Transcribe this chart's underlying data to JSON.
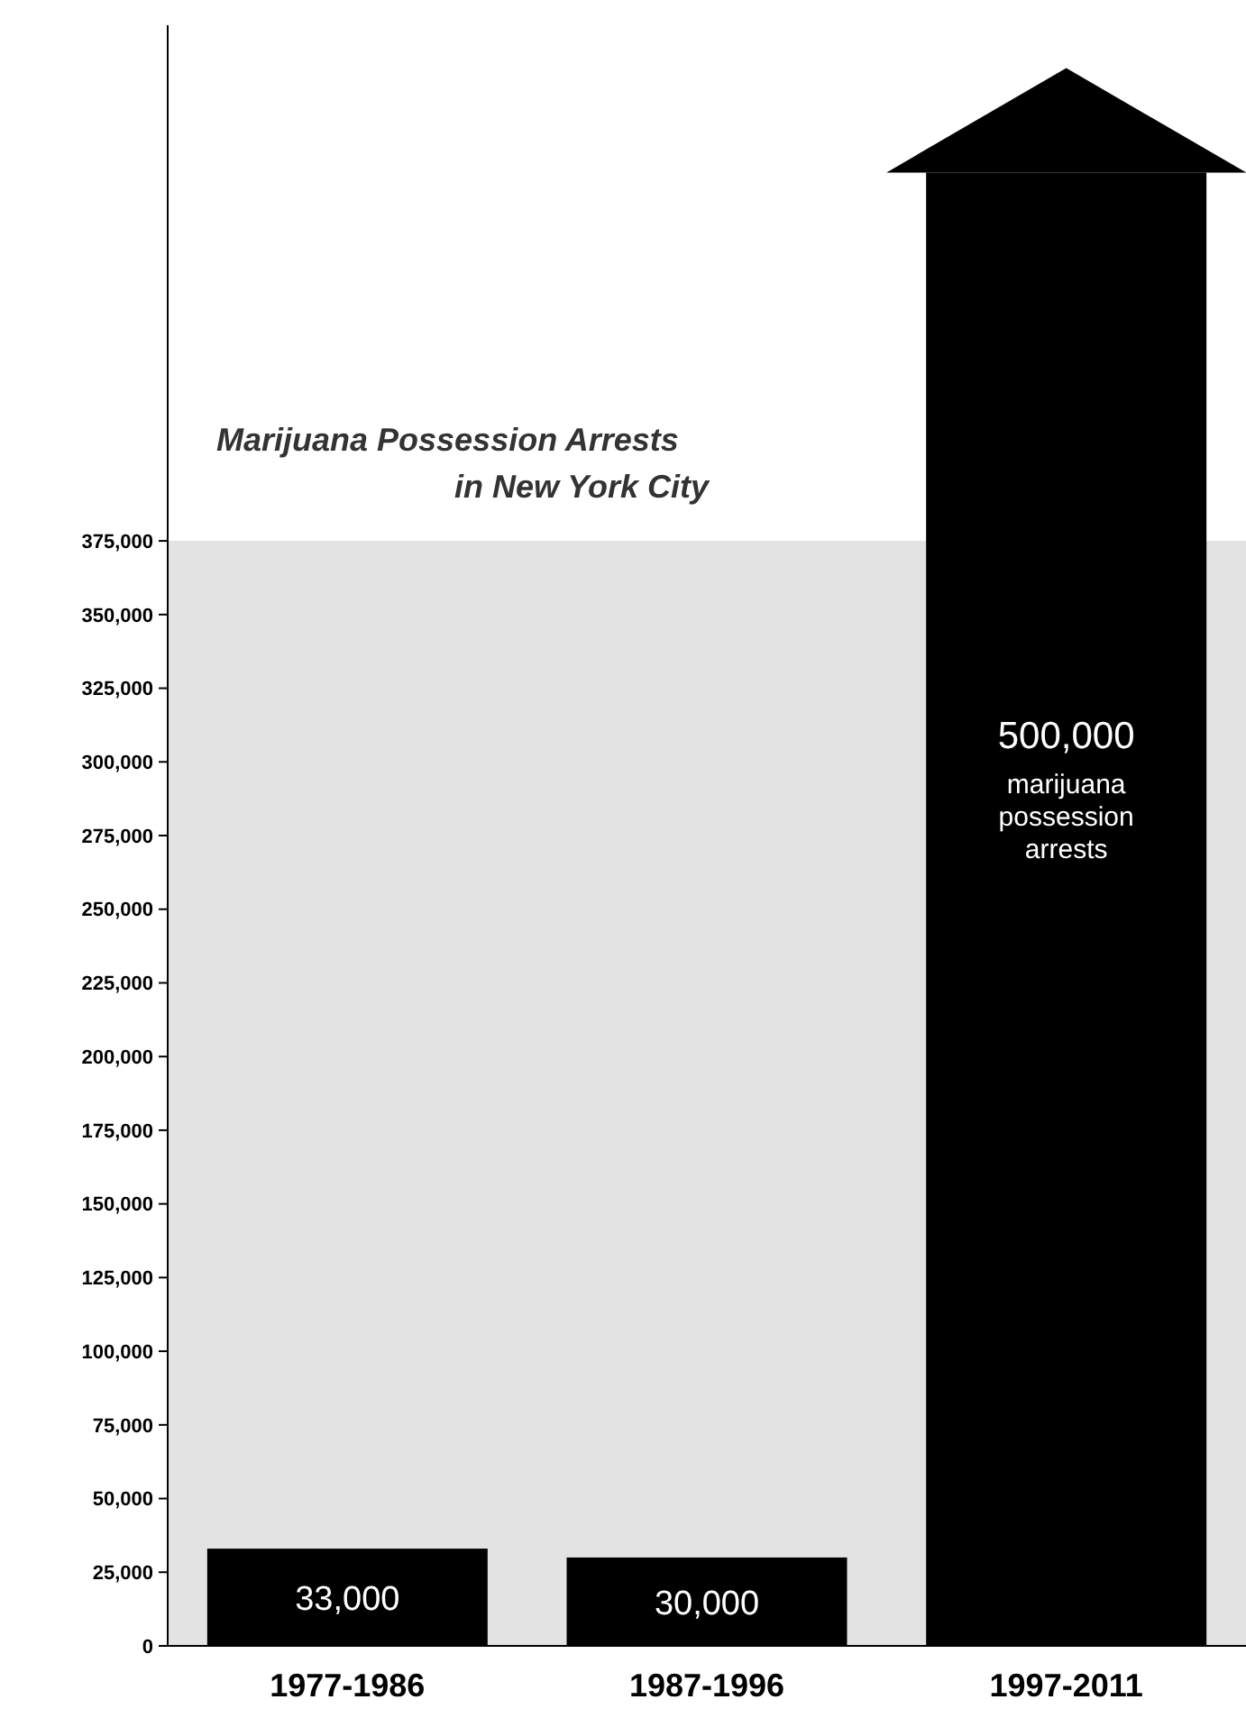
{
  "chart_data": {
    "type": "bar",
    "title": "Marijuana Possession Arrests\nin New York City",
    "categories": [
      "1977-1986",
      "1987-1996",
      "1997-2011"
    ],
    "values": [
      33000,
      30000,
      500000
    ],
    "color": "#000000",
    "value_labels": [
      "33,000",
      "30,000",
      "500,000"
    ],
    "annotations": [
      "marijuana\npossession\narrests"
    ],
    "ylim": [
      0,
      550000
    ],
    "yticks": [
      0,
      {
        "value": 25000,
        "label": "25,000"
      },
      {
        "value": 50000,
        "label": "50,000"
      },
      {
        "value": 75000,
        "label": "75,000"
      },
      {
        "value": 100000,
        "label": "100,000"
      },
      {
        "value": 125000,
        "label": "125,000"
      },
      {
        "value": 150000,
        "label": "150,000"
      },
      {
        "value": 175000,
        "label": "175,000"
      },
      {
        "value": 200000,
        "label": "200,000"
      },
      {
        "value": 225000,
        "label": "225,000"
      },
      {
        "value": 250000,
        "label": "250,000"
      },
      {
        "value": 275000,
        "label": "275,000"
      },
      {
        "value": 300000,
        "label": "300,000"
      },
      {
        "value": 325000,
        "label": "325,000"
      },
      {
        "value": 350000,
        "label": "350,000"
      },
      {
        "value": 375000,
        "label": "375,000"
      }
    ],
    "bands": [
      {
        "axis": "y",
        "from": 0,
        "to": 375000,
        "color": "#e3e3e3"
      }
    ],
    "grid": false,
    "legend": false
  }
}
